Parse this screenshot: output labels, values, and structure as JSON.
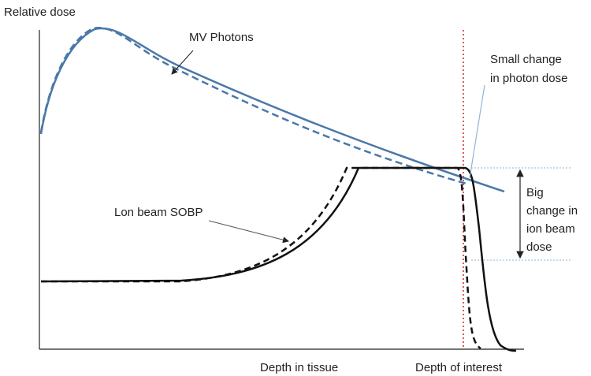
{
  "axis_labels": {
    "y": "Relative dose",
    "x": "Depth in tissue",
    "x_marker": "Depth of interest"
  },
  "annotations": {
    "photons": "MV Photons",
    "ion": "Lon beam SOBP",
    "small_change": [
      "Small change",
      "in photon dose"
    ],
    "big_change": [
      "Big",
      "change in",
      "ion beam",
      "dose"
    ]
  }
}
